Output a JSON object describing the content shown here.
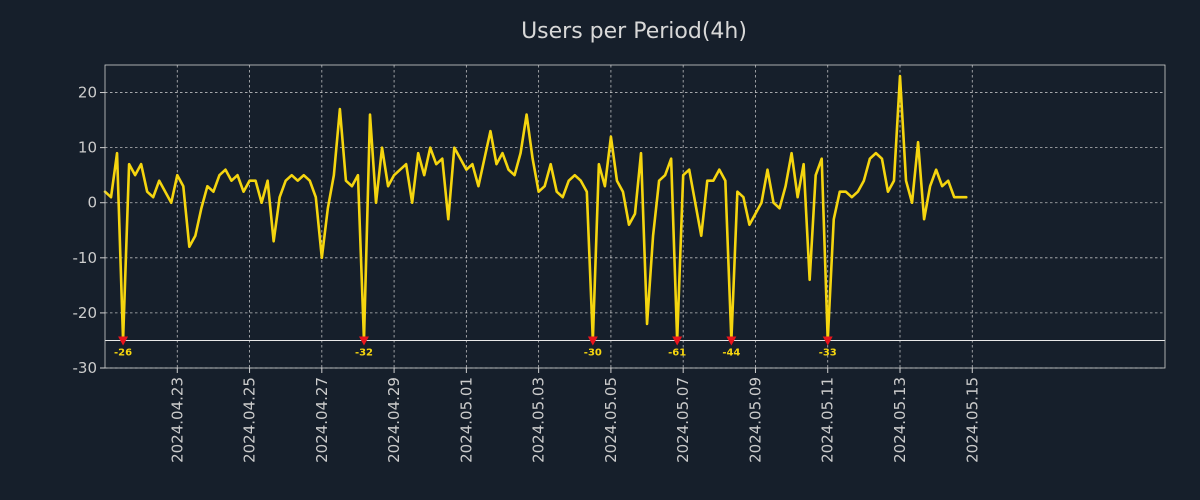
{
  "chart_data": {
    "type": "line",
    "title": "Users per Period(4h)",
    "xlabel": "",
    "ylabel": "",
    "ylim": [
      -30,
      25
    ],
    "xlim": [
      0,
      176
    ],
    "y_ticks": [
      20,
      10,
      0,
      -10,
      -20,
      -30
    ],
    "x_ticks": [
      {
        "pos": 12,
        "label": "2024.04.23"
      },
      {
        "pos": 24,
        "label": "2024.04.25"
      },
      {
        "pos": 36,
        "label": "2024.04.27"
      },
      {
        "pos": 48,
        "label": "2024.04.29"
      },
      {
        "pos": 60,
        "label": "2024.05.01"
      },
      {
        "pos": 72,
        "label": "2024.05.03"
      },
      {
        "pos": 84,
        "label": "2024.05.05"
      },
      {
        "pos": 96,
        "label": "2024.05.07"
      },
      {
        "pos": 108,
        "label": "2024.05.09"
      },
      {
        "pos": 120,
        "label": "2024.05.11"
      },
      {
        "pos": 132,
        "label": "2024.05.13"
      },
      {
        "pos": 144,
        "label": "2024.05.15"
      }
    ],
    "clip_floor": -25,
    "grid": true,
    "series": [
      {
        "name": "users",
        "color": "#f5d50f",
        "values": [
          2,
          1,
          9,
          -26,
          7,
          5,
          7,
          2,
          1,
          4,
          2,
          0,
          5,
          3,
          -8,
          -6,
          -1,
          3,
          2,
          5,
          6,
          4,
          5,
          2,
          4,
          4,
          0,
          4,
          -7,
          1,
          4,
          5,
          4,
          5,
          4,
          1,
          -10,
          -1,
          5,
          17,
          4,
          3,
          5,
          -32,
          16,
          0,
          10,
          3,
          5,
          6,
          7,
          0,
          9,
          5,
          10,
          7,
          8,
          -3,
          10,
          8,
          6,
          7,
          3,
          8,
          13,
          7,
          9,
          6,
          5,
          9,
          16,
          8,
          2,
          3,
          7,
          2,
          1,
          4,
          5,
          4,
          2,
          -30,
          7,
          3,
          12,
          4,
          2,
          -4,
          -2,
          9,
          -22,
          -6,
          4,
          5,
          8,
          -61,
          5,
          6,
          0,
          -6,
          4,
          4,
          6,
          4,
          -44,
          2,
          1,
          -4,
          -2,
          0,
          6,
          0,
          -1,
          3,
          9,
          1,
          7,
          -14,
          5,
          8,
          -33,
          -3,
          2,
          2,
          1,
          2,
          4,
          8,
          9,
          8,
          2,
          4,
          23,
          4,
          0,
          11,
          -3,
          3,
          6,
          3,
          4,
          1,
          1,
          1
        ]
      }
    ],
    "annotations": [
      {
        "index": 3,
        "label": "-26"
      },
      {
        "index": 43,
        "label": "-32"
      },
      {
        "index": 81,
        "label": "-30"
      },
      {
        "index": 95,
        "label": "-61"
      },
      {
        "index": 104,
        "label": "-44"
      },
      {
        "index": 120,
        "label": "-33"
      }
    ],
    "colors": {
      "line": "#f5d50f",
      "marker": "#e8141c",
      "annotation": "#f5d50f"
    }
  }
}
